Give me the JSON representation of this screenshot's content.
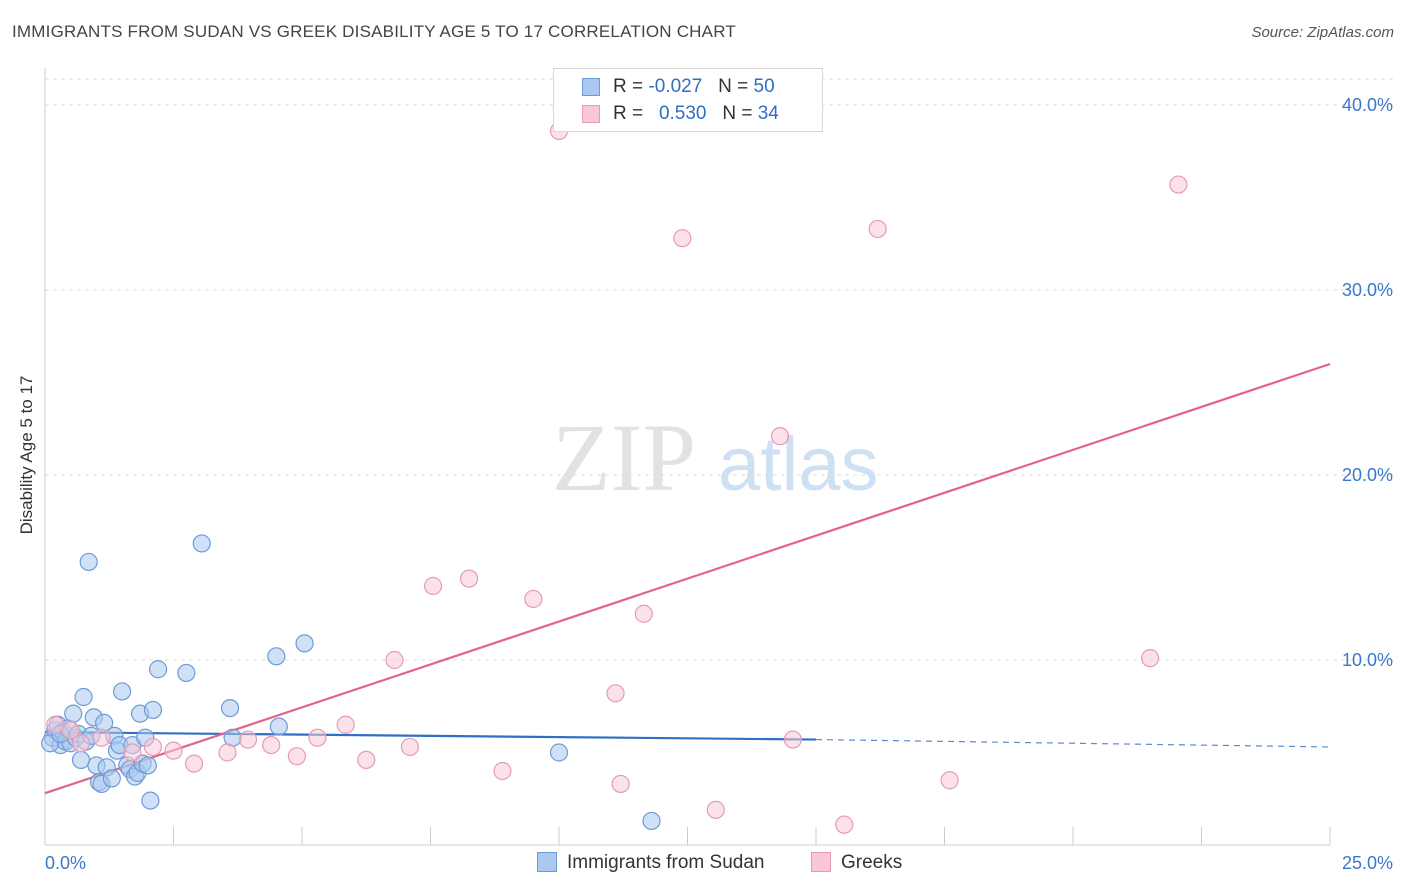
{
  "header": {
    "title": "IMMIGRANTS FROM SUDAN VS GREEK DISABILITY AGE 5 TO 17 CORRELATION CHART",
    "source": "Source: ZipAtlas.com"
  },
  "legend": {
    "rows": [
      {
        "r_label": "R =",
        "r_value": "-0.027",
        "n_label": "N =",
        "n_value": "50"
      },
      {
        "r_label": "R =",
        "r_value": "0.530",
        "n_label": "N =",
        "n_value": "34"
      }
    ],
    "bottom": [
      "Immigrants from Sudan",
      "Greeks"
    ]
  },
  "watermark": {
    "zip": "ZIP",
    "atlas": "atlas"
  },
  "colors": {
    "sudan_fill": "#aac8f0",
    "sudan_stroke": "#6e9bd6",
    "sudan_line": "#2f6fc4",
    "greek_fill": "#f8c8d8",
    "greek_stroke": "#e89ab4",
    "greek_line": "#e0648e",
    "tick_label": "#3a78c9",
    "grid": "#dddddd"
  },
  "chart_data": {
    "type": "scatter",
    "title": "IMMIGRANTS FROM SUDAN VS GREEK DISABILITY AGE 5 TO 17 CORRELATION CHART",
    "xlabel": "",
    "ylabel": "Disability Age 5 to 17",
    "xlim": [
      0,
      25
    ],
    "ylim": [
      0,
      42
    ],
    "x_tick_labels": [
      "0.0%",
      "25.0%"
    ],
    "y_ticks": [
      10,
      20,
      30,
      40
    ],
    "y_tick_labels": [
      "10.0%",
      "20.0%",
      "30.0%",
      "40.0%"
    ],
    "grid": true,
    "legend_position": "top-center",
    "series": [
      {
        "name": "Immigrants from Sudan",
        "color": "#aac8f0",
        "points": [
          [
            0.15,
            5.8
          ],
          [
            0.2,
            6.2
          ],
          [
            0.25,
            6.5
          ],
          [
            0.3,
            5.4
          ],
          [
            0.35,
            6.1
          ],
          [
            0.4,
            5.6
          ],
          [
            0.45,
            6.3
          ],
          [
            0.5,
            5.5
          ],
          [
            0.55,
            7.1
          ],
          [
            0.6,
            5.8
          ],
          [
            0.65,
            6.0
          ],
          [
            0.7,
            4.6
          ],
          [
            0.75,
            8.0
          ],
          [
            0.8,
            5.6
          ],
          [
            0.85,
            15.3
          ],
          [
            0.9,
            5.9
          ],
          [
            0.95,
            6.9
          ],
          [
            1.0,
            4.3
          ],
          [
            1.05,
            3.4
          ],
          [
            1.1,
            3.3
          ],
          [
            1.15,
            6.6
          ],
          [
            1.2,
            4.2
          ],
          [
            1.3,
            3.6
          ],
          [
            1.35,
            5.9
          ],
          [
            1.4,
            5.1
          ],
          [
            1.45,
            5.4
          ],
          [
            1.5,
            8.3
          ],
          [
            1.6,
            4.3
          ],
          [
            1.65,
            4.1
          ],
          [
            1.7,
            5.4
          ],
          [
            1.75,
            3.7
          ],
          [
            1.8,
            3.9
          ],
          [
            1.85,
            7.1
          ],
          [
            1.9,
            4.4
          ],
          [
            1.95,
            5.8
          ],
          [
            2.0,
            4.3
          ],
          [
            2.05,
            2.4
          ],
          [
            2.1,
            7.3
          ],
          [
            2.2,
            9.5
          ],
          [
            2.75,
            9.3
          ],
          [
            3.05,
            16.3
          ],
          [
            3.6,
            7.4
          ],
          [
            3.65,
            5.8
          ],
          [
            4.5,
            10.2
          ],
          [
            4.55,
            6.4
          ],
          [
            5.05,
            10.9
          ],
          [
            10.0,
            5.0
          ],
          [
            11.8,
            1.3
          ],
          [
            0.1,
            5.5
          ],
          [
            0.3,
            6.0
          ]
        ]
      },
      {
        "name": "Greeks",
        "color": "#f8c8d8",
        "points": [
          [
            0.2,
            6.5
          ],
          [
            0.5,
            6.2
          ],
          [
            0.7,
            5.5
          ],
          [
            1.1,
            5.8
          ],
          [
            1.7,
            5.0
          ],
          [
            2.1,
            5.3
          ],
          [
            2.5,
            5.1
          ],
          [
            2.9,
            4.4
          ],
          [
            3.55,
            5.0
          ],
          [
            3.95,
            5.7
          ],
          [
            4.4,
            5.4
          ],
          [
            4.9,
            4.8
          ],
          [
            5.3,
            5.8
          ],
          [
            5.85,
            6.5
          ],
          [
            6.25,
            4.6
          ],
          [
            6.8,
            10.0
          ],
          [
            7.1,
            5.3
          ],
          [
            7.55,
            14.0
          ],
          [
            8.25,
            14.4
          ],
          [
            8.9,
            4.0
          ],
          [
            9.5,
            13.3
          ],
          [
            10.0,
            38.6
          ],
          [
            11.1,
            8.2
          ],
          [
            11.2,
            3.3
          ],
          [
            11.65,
            12.5
          ],
          [
            12.4,
            32.8
          ],
          [
            13.05,
            1.9
          ],
          [
            14.3,
            22.1
          ],
          [
            14.55,
            5.7
          ],
          [
            15.55,
            1.1
          ],
          [
            16.2,
            33.3
          ],
          [
            17.6,
            3.5
          ],
          [
            21.5,
            10.1
          ],
          [
            22.05,
            35.7
          ]
        ]
      }
    ],
    "trend_lines": [
      {
        "series": "Immigrants from Sudan",
        "x_start": 0,
        "y_start": 6.1,
        "x_solid_end": 15.0,
        "y_solid_end": 5.7,
        "x_end": 25,
        "y_end": 5.3,
        "extension_style": "dashed"
      },
      {
        "series": "Greeks",
        "x_start": 0,
        "y_start": 2.8,
        "x_end": 25,
        "y_end": 26.0
      }
    ]
  }
}
